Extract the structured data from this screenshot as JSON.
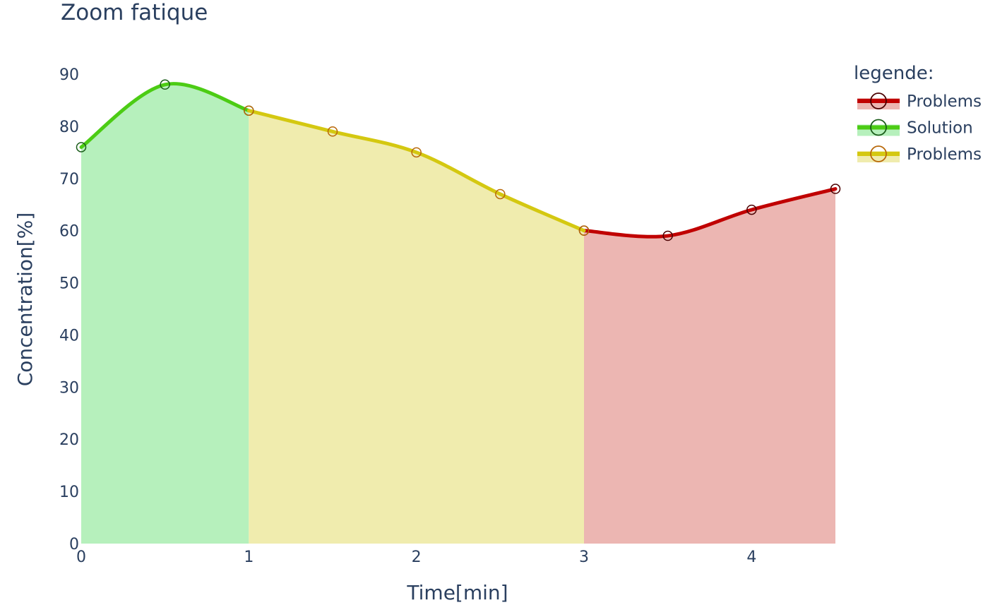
{
  "chart_data": {
    "type": "area",
    "title": "Zoom fatique",
    "xlabel": "Time[min]",
    "ylabel": "Concentration[%]",
    "xlim": [
      0,
      4.5
    ],
    "ylim": [
      0,
      90
    ],
    "x_ticks": [
      "0",
      "1",
      "2",
      "3",
      "4"
    ],
    "y_ticks": [
      "0",
      "10",
      "20",
      "30",
      "40",
      "50",
      "60",
      "70",
      "80",
      "90"
    ],
    "legend_title": "legende:",
    "legend_position": "right",
    "grid": false,
    "series": [
      {
        "name": "Problems",
        "line_color": "#c00000",
        "fill_color": "#ecb6b2",
        "marker_color": "#4a0000",
        "x": [
          3,
          3.5,
          4,
          4.5
        ],
        "y": [
          60,
          59,
          64,
          68
        ]
      },
      {
        "name": "Solution",
        "line_color": "#4ccc14",
        "fill_color": "#b6f0bc",
        "marker_color": "#1a5c1a",
        "x": [
          0,
          0.5,
          1
        ],
        "y": [
          76,
          88,
          83
        ]
      },
      {
        "name": "Problems",
        "line_color": "#d4c811",
        "fill_color": "#f0ecae",
        "marker_color": "#b8680a",
        "x": [
          1,
          1.5,
          2,
          2.5,
          3
        ],
        "y": [
          83,
          79,
          75,
          67,
          60
        ]
      }
    ]
  }
}
